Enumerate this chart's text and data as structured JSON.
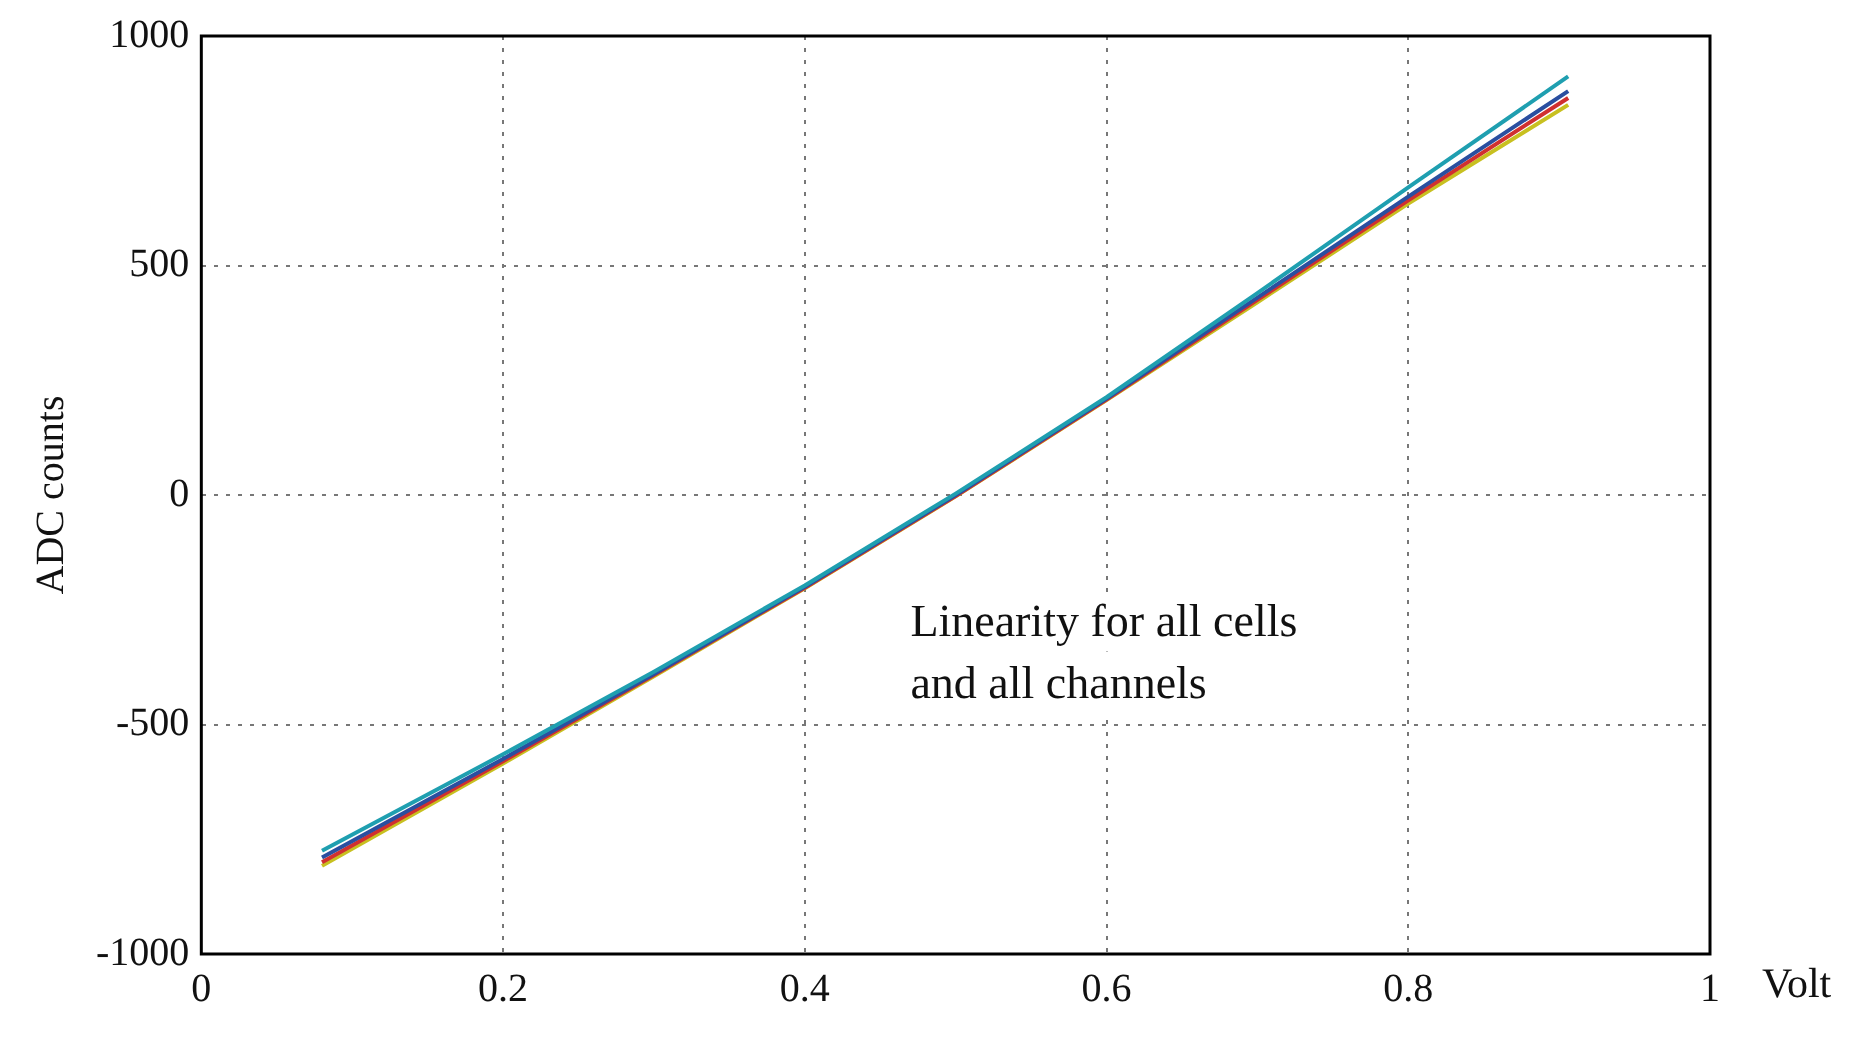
{
  "chart_data": {
    "type": "line",
    "xlabel": "Volt",
    "ylabel": "ADC counts",
    "annotations": [
      "Linearity for all cells\nand all channels"
    ],
    "xlim": [
      0,
      1
    ],
    "xticks": [
      0,
      0.2,
      0.4,
      0.6,
      0.8,
      1
    ],
    "ylim": [
      -1000,
      1000
    ],
    "yticks": [
      -1000,
      -500,
      0,
      500,
      1000
    ],
    "grid": true,
    "legend": false,
    "marker": "none",
    "line_style": "solid",
    "x": [
      0.08,
      0.2,
      0.3,
      0.4,
      0.5,
      0.6,
      0.7,
      0.8,
      0.906
    ],
    "series": [
      {
        "color": "#1f9fb0",
        "values": [
          -775,
          -565,
          -385,
          -197,
          3,
          213,
          440,
          670,
          912
        ]
      },
      {
        "color": "#2a4fa0",
        "values": [
          -790,
          -575,
          -390,
          -200,
          0,
          210,
          430,
          650,
          880
        ]
      },
      {
        "color": "#d03030",
        "values": [
          -800,
          -580,
          -392,
          -202,
          -2,
          208,
          425,
          642,
          865
        ]
      },
      {
        "color": "#c8c020",
        "values": [
          -808,
          -585,
          -395,
          -203,
          -3,
          207,
          420,
          635,
          850
        ]
      }
    ]
  }
}
